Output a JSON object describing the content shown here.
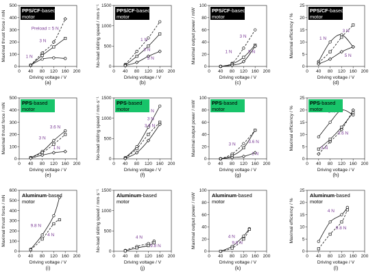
{
  "chart_data": [
    {
      "id": "a",
      "type": "line",
      "sublabel": "(a)",
      "box": {
        "bold": "PPS/CF",
        "rest": "-based motor",
        "style": "black"
      },
      "xlabel": "Driving voltage / V",
      "ylabel": "Maximal thrust force / mN",
      "xlim": [
        0,
        200
      ],
      "xticks": [
        0,
        40,
        80,
        120,
        160,
        200
      ],
      "ylim": [
        0,
        500
      ],
      "yticks": [
        0,
        100,
        200,
        300,
        400,
        500
      ],
      "series": [
        {
          "name": "1 N",
          "dash": false,
          "x": [
            40,
            80,
            120,
            160
          ],
          "y": [
            10,
            60,
            70,
            65
          ]
        },
        {
          "name": "3 N",
          "dash": false,
          "x": [
            40,
            80,
            120,
            160
          ],
          "y": [
            10,
            90,
            160,
            230
          ]
        },
        {
          "name": "Preload = 5 N",
          "dash": true,
          "x": [
            40,
            80,
            120,
            160
          ],
          "y": [
            10,
            110,
            200,
            390
          ]
        }
      ],
      "annotations": [
        {
          "text": "1 N",
          "x": 35,
          "y": 70
        },
        {
          "text": "3 N",
          "x": 82,
          "y": 200
        },
        {
          "text": "Preload = 5 N",
          "x": 90,
          "y": 300
        }
      ]
    },
    {
      "id": "b",
      "type": "line",
      "sublabel": "(b)",
      "box": {
        "bold": "PPS/CF",
        "rest": "-based motor",
        "style": "black"
      },
      "xlabel": "Driving voltage / V",
      "ylabel": "No-load sliding speed / mm·s⁻¹",
      "xlim": [
        0,
        200
      ],
      "xticks": [
        0,
        40,
        80,
        120,
        160,
        200
      ],
      "ylim": [
        0,
        1500
      ],
      "yticks": [
        0,
        500,
        1000,
        1500
      ],
      "series": [
        {
          "name": "1 N",
          "dash": true,
          "x": [
            40,
            80,
            120,
            160
          ],
          "y": [
            50,
            370,
            700,
            1100
          ]
        },
        {
          "name": "3 N",
          "dash": false,
          "x": [
            40,
            80,
            120,
            160
          ],
          "y": [
            30,
            250,
            500,
            800
          ]
        },
        {
          "name": "5 N",
          "dash": false,
          "x": [
            40,
            80,
            120,
            160
          ],
          "y": [
            20,
            100,
            250,
            370
          ]
        }
      ],
      "annotations": [
        {
          "text": "1 N",
          "x": 105,
          "y": 620
        },
        {
          "text": "3 N",
          "x": 115,
          "y": 380
        },
        {
          "text": "5 N",
          "x": 128,
          "y": 170
        }
      ]
    },
    {
      "id": "c",
      "type": "line",
      "sublabel": "(c)",
      "box": {
        "bold": "PPS/CF",
        "rest": "-based motor",
        "style": "black"
      },
      "xlabel": "Driving voltage / V",
      "ylabel": "Maximal output power / mW",
      "xlim": [
        0,
        200
      ],
      "xticks": [
        0,
        40,
        80,
        120,
        160,
        200
      ],
      "ylim": [
        0,
        100
      ],
      "yticks": [
        0,
        20,
        40,
        60,
        80,
        100
      ],
      "series": [
        {
          "name": "3 N",
          "dash": true,
          "x": [
            40,
            80,
            120,
            160
          ],
          "y": [
            0,
            5,
            30,
            60
          ]
        },
        {
          "name": "1 N",
          "dash": false,
          "x": [
            40,
            80,
            120,
            160
          ],
          "y": [
            0,
            4,
            15,
            35
          ]
        },
        {
          "name": "5 N",
          "dash": false,
          "x": [
            40,
            80,
            120,
            160
          ],
          "y": [
            0,
            2,
            8,
            33
          ]
        }
      ],
      "annotations": [
        {
          "text": "3 N",
          "x": 118,
          "y": 47
        },
        {
          "text": "1 N",
          "x": 68,
          "y": 22
        },
        {
          "text": "5 N",
          "x": 148,
          "y": 22
        }
      ]
    },
    {
      "id": "d",
      "type": "line",
      "sublabel": "(d)",
      "box": {
        "bold": "PPS/CF",
        "rest": "-based motor",
        "style": "black"
      },
      "xlabel": "Driving voltage / V",
      "ylabel": "Maximal efficiency / %",
      "xlim": [
        0,
        200
      ],
      "xticks": [
        0,
        40,
        80,
        120,
        160,
        200
      ],
      "ylim": [
        0,
        25
      ],
      "yticks": [
        0,
        5,
        10,
        15,
        20,
        25
      ],
      "series": [
        {
          "name": "1 N",
          "dash": false,
          "x": [
            40,
            80,
            120,
            160
          ],
          "y": [
            2,
            10,
            13,
            8
          ]
        },
        {
          "name": "3 N",
          "dash": true,
          "x": [
            40,
            80,
            120,
            160
          ],
          "y": [
            1.5,
            6,
            12,
            17
          ]
        },
        {
          "name": "5 N",
          "dash": false,
          "x": [
            40,
            80,
            120,
            160
          ],
          "y": [
            1,
            3,
            6,
            8
          ]
        }
      ],
      "annotations": [
        {
          "text": "1 N",
          "x": 55,
          "y": 11
        },
        {
          "text": "3 N",
          "x": 135,
          "y": 14
        },
        {
          "text": "5 N",
          "x": 142,
          "y": 4
        }
      ]
    },
    {
      "id": "e",
      "type": "line",
      "sublabel": "(e)",
      "box": {
        "bold": "PPS",
        "rest": "-based motor",
        "style": "green"
      },
      "xlabel": "Driving voltage / V",
      "ylabel": "Maximal thrust force / mN",
      "xlim": [
        0,
        200
      ],
      "xticks": [
        0,
        40,
        80,
        120,
        160,
        200
      ],
      "ylim": [
        0,
        500
      ],
      "yticks": [
        0,
        100,
        200,
        300,
        400,
        500
      ],
      "series": [
        {
          "name": "3.6 N",
          "dash": false,
          "x": [
            40,
            80,
            120,
            160
          ],
          "y": [
            10,
            60,
            150,
            230
          ]
        },
        {
          "name": "3 N",
          "dash": true,
          "x": [
            40,
            80,
            120,
            160
          ],
          "y": [
            10,
            50,
            120,
            200
          ]
        },
        {
          "name": "1 N",
          "dash": false,
          "x": [
            40,
            80,
            120,
            160
          ],
          "y": [
            5,
            30,
            50,
            60
          ]
        }
      ],
      "annotations": [
        {
          "text": "3.6 N",
          "x": 125,
          "y": 250
        },
        {
          "text": "3 N",
          "x": 80,
          "y": 160
        },
        {
          "text": "1 N",
          "x": 130,
          "y": 80
        }
      ]
    },
    {
      "id": "f",
      "type": "line",
      "sublabel": "(f)",
      "box": {
        "bold": "PPS",
        "rest": "-based motor",
        "style": "green"
      },
      "xlabel": "Driving voltage / V",
      "ylabel": "No-load sliding speed / mm·s⁻¹",
      "xlim": [
        0,
        200
      ],
      "xticks": [
        0,
        40,
        80,
        120,
        160,
        200
      ],
      "ylim": [
        0,
        1500
      ],
      "yticks": [
        0,
        500,
        1000,
        1500
      ],
      "series": [
        {
          "name": "1 N",
          "dash": false,
          "x": [
            40,
            80,
            120,
            160
          ],
          "y": [
            30,
            300,
            780,
            1300
          ]
        },
        {
          "name": "3 N",
          "dash": true,
          "x": [
            40,
            80,
            120,
            160
          ],
          "y": [
            20,
            250,
            600,
            900
          ]
        },
        {
          "name": "3.6 N",
          "dash": false,
          "x": [
            40,
            80,
            120,
            160
          ],
          "y": [
            10,
            150,
            450,
            850
          ]
        }
      ],
      "annotations": [
        {
          "text": "1 N",
          "x": 128,
          "y": 1150
        },
        {
          "text": "3 N",
          "x": 128,
          "y": 950
        },
        {
          "text": "3.6 N",
          "x": 125,
          "y": 780
        }
      ]
    },
    {
      "id": "g",
      "type": "line",
      "sublabel": "(g)",
      "box": {
        "bold": "PPS",
        "rest": "-based motor",
        "style": "green"
      },
      "xlabel": "Driving voltage / V",
      "ylabel": "Maximal output power / mW",
      "xlim": [
        0,
        200
      ],
      "xticks": [
        0,
        40,
        80,
        120,
        160,
        200
      ],
      "ylim": [
        0,
        100
      ],
      "yticks": [
        0,
        20,
        40,
        60,
        80,
        100
      ],
      "series": [
        {
          "name": "3 N",
          "dash": true,
          "x": [
            40,
            80,
            120,
            160
          ],
          "y": [
            0,
            8,
            25,
            47
          ]
        },
        {
          "name": "3.6 N",
          "dash": false,
          "x": [
            40,
            80,
            120,
            160
          ],
          "y": [
            0,
            5,
            18,
            47
          ]
        },
        {
          "name": "1 N",
          "dash": false,
          "x": [
            40,
            80,
            120,
            160
          ],
          "y": [
            0,
            2,
            4,
            10
          ]
        }
      ],
      "annotations": [
        {
          "text": "3 N",
          "x": 80,
          "y": 22
        },
        {
          "text": "3.6 N",
          "x": 155,
          "y": 26
        },
        {
          "text": "1 N",
          "x": 160,
          "y": 6
        }
      ]
    },
    {
      "id": "h",
      "type": "line",
      "sublabel": "(h)",
      "box": {
        "bold": "PPS",
        "rest": "-based motor",
        "style": "green"
      },
      "xlabel": "Driving voltage / V",
      "ylabel": "Maximal efficiency / %",
      "xlim": [
        0,
        200
      ],
      "xticks": [
        0,
        40,
        80,
        120,
        160,
        200
      ],
      "ylim": [
        0,
        25
      ],
      "yticks": [
        0,
        5,
        10,
        15,
        20,
        25
      ],
      "series": [
        {
          "name": "1 N",
          "dash": false,
          "x": [
            40,
            80,
            120,
            160
          ],
          "y": [
            9,
            15,
            20,
            18
          ]
        },
        {
          "name": "3 N",
          "dash": false,
          "x": [
            40,
            80,
            120,
            160
          ],
          "y": [
            4,
            8,
            13,
            19
          ]
        },
        {
          "name": "3.6 N",
          "dash": true,
          "x": [
            40,
            80,
            120,
            160
          ],
          "y": [
            2,
            7,
            12,
            20
          ]
        }
      ],
      "annotations": [
        {
          "text": "1 N",
          "x": 85,
          "y": 19
        },
        {
          "text": "3 N",
          "x": 60,
          "y": 4
        },
        {
          "text": "3.6 N",
          "x": 125,
          "y": 10
        }
      ]
    },
    {
      "id": "i",
      "type": "line",
      "sublabel": "(i)",
      "box": {
        "bold": "Aluminum",
        "rest": "-based motor",
        "style": "white"
      },
      "xlabel": "Driving voltage / V",
      "ylabel": "Maximal thrust force / mN",
      "xlim": [
        0,
        200
      ],
      "xticks": [
        0,
        40,
        80,
        120,
        160,
        200
      ],
      "ylim": [
        0,
        600
      ],
      "yticks": [
        0,
        100,
        200,
        300,
        400,
        500,
        600
      ],
      "series": [
        {
          "name": "9.8 N",
          "dash": false,
          "x": [
            40,
            80,
            120,
            140
          ],
          "y": [
            20,
            160,
            350,
            530
          ]
        },
        {
          "name": "4 N",
          "dash": true,
          "x": [
            40,
            80,
            120,
            140
          ],
          "y": [
            15,
            120,
            270,
            310
          ]
        }
      ],
      "annotations": [
        {
          "text": "9.8 N",
          "x": 58,
          "y": 240
        },
        {
          "text": "4 N",
          "x": 110,
          "y": 150
        }
      ]
    },
    {
      "id": "j",
      "type": "line",
      "sublabel": "(j)",
      "box": {
        "bold": "Aluminum",
        "rest": "-based motor",
        "style": "white"
      },
      "xlabel": "Driving voltage / V",
      "ylabel": "No-load sliding speed / mm·s⁻¹",
      "xlim": [
        0,
        200
      ],
      "xticks": [
        0,
        40,
        80,
        120,
        160,
        200
      ],
      "ylim": [
        0,
        1500
      ],
      "yticks": [
        0,
        500,
        1000,
        1500
      ],
      "series": [
        {
          "name": "4 N",
          "dash": true,
          "x": [
            40,
            80,
            120,
            140
          ],
          "y": [
            20,
            120,
            190,
            250
          ]
        },
        {
          "name": "9.8 N",
          "dash": false,
          "x": [
            40,
            80,
            120,
            140
          ],
          "y": [
            10,
            80,
            140,
            210
          ]
        }
      ],
      "annotations": [
        {
          "text": "4 N",
          "x": 88,
          "y": 310
        },
        {
          "text": "9.8 N",
          "x": 145,
          "y": 100
        }
      ]
    },
    {
      "id": "k",
      "type": "line",
      "sublabel": "(k)",
      "box": {
        "bold": "Aluminum",
        "rest": "-based motor",
        "style": "white"
      },
      "xlabel": "Driving voltage / V",
      "ylabel": "Maximal output power / mW",
      "xlim": [
        0,
        200
      ],
      "xticks": [
        0,
        40,
        80,
        120,
        160,
        200
      ],
      "ylim": [
        0,
        100
      ],
      "yticks": [
        0,
        20,
        40,
        60,
        80,
        100
      ],
      "series": [
        {
          "name": "4 N",
          "dash": false,
          "x": [
            40,
            80,
            120,
            140
          ],
          "y": [
            0,
            8,
            25,
            37
          ]
        },
        {
          "name": "9.8 N",
          "dash": true,
          "x": [
            40,
            80,
            120,
            140
          ],
          "y": [
            0,
            5,
            20,
            36
          ]
        }
      ],
      "annotations": [
        {
          "text": "4 N",
          "x": 78,
          "y": 22
        },
        {
          "text": "9.8 N",
          "x": 98,
          "y": 12
        }
      ]
    },
    {
      "id": "l",
      "type": "line",
      "sublabel": "(l)",
      "box": {
        "bold": "Aluminum",
        "rest": "-based motor",
        "style": "white"
      },
      "xlabel": "Driving voltage / V",
      "ylabel": "Maximal efficiency / %",
      "xlim": [
        0,
        200
      ],
      "xticks": [
        0,
        40,
        80,
        120,
        160,
        200
      ],
      "ylim": [
        0,
        25
      ],
      "yticks": [
        0,
        5,
        10,
        15,
        20,
        25
      ],
      "series": [
        {
          "name": "4 N",
          "dash": false,
          "x": [
            40,
            80,
            120,
            140
          ],
          "y": [
            4,
            12,
            15,
            18
          ]
        },
        {
          "name": "9.8 N",
          "dash": true,
          "x": [
            40,
            80,
            120,
            140
          ],
          "y": [
            1,
            7,
            12,
            17
          ]
        }
      ],
      "annotations": [
        {
          "text": "4 N",
          "x": 83,
          "y": 16
        },
        {
          "text": "9.8 N",
          "x": 118,
          "y": 9
        }
      ]
    }
  ],
  "colors": {
    "line": "#111111",
    "annotation": "#7a3a95",
    "box_black": "#000000",
    "box_green": "#18c46a",
    "box_white": "#ffffff"
  }
}
